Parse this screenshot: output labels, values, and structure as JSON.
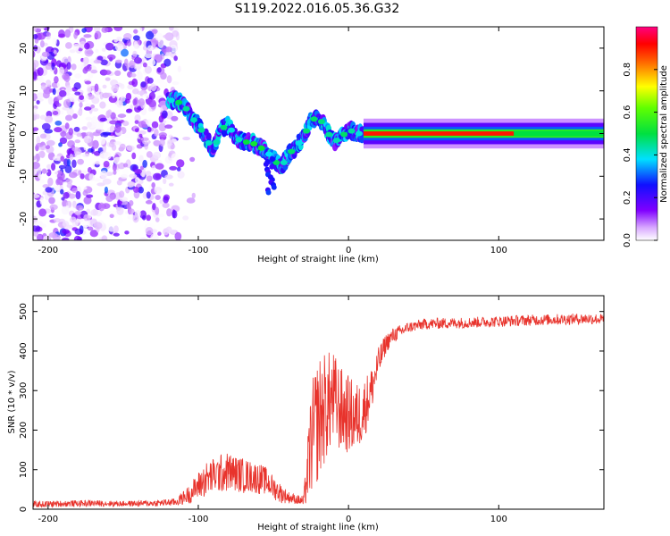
{
  "chart_data": [
    {
      "type": "heatmap",
      "title": "S119.2022.016.05.36.G32",
      "xlabel": "Height of straight line (km)",
      "ylabel": "Frequency (Hz)",
      "xlim": [
        -210,
        170
      ],
      "ylim": [
        -25,
        25
      ],
      "x_ticks": [
        -200,
        -100,
        0,
        100
      ],
      "y_ticks": [
        20,
        10,
        0,
        -10,
        -20
      ],
      "colorbar": {
        "label": "Normalized spectral amplitude",
        "range": [
          0,
          1
        ],
        "ticks": [
          "0.0",
          "0.2",
          "0.4",
          "0.6",
          "0.8"
        ],
        "tick_values": [
          0.0,
          0.2,
          0.4,
          0.6,
          0.8
        ],
        "colormap": "rainbow (white-violet-blue-cyan-green-yellow-red-magenta)"
      },
      "ridge": {
        "x": [
          -120,
          -115,
          -110,
          -105,
          -100,
          -95,
          -90,
          -85,
          -80,
          -75,
          -70,
          -65,
          -60,
          -55,
          -50,
          -45,
          -40,
          -35,
          -30,
          -25,
          -20,
          -15,
          -10,
          -5,
          0,
          5,
          10
        ],
        "y": [
          8,
          7.5,
          7,
          4,
          2,
          -1,
          -4,
          1,
          2,
          -1,
          -2,
          -2,
          -3,
          -4,
          -6,
          -8,
          -5,
          -3,
          -1,
          3,
          4,
          1,
          -2,
          -1,
          1,
          0,
          0
        ]
      },
      "carrier": {
        "x_start": 10,
        "x_end": 170,
        "frequency": 0,
        "amplitude": 0.9
      }
    },
    {
      "type": "line",
      "xlabel": "Height of straight line (km)",
      "ylabel": "SNR (10 * v/v)",
      "xlim": [
        -210,
        170
      ],
      "ylim": [
        0,
        540
      ],
      "x_ticks": [
        -200,
        -100,
        0,
        100
      ],
      "y_ticks": [
        0,
        100,
        200,
        300,
        400,
        500
      ],
      "color": "#e8332c",
      "x": [
        -210,
        -190,
        -170,
        -150,
        -130,
        -115,
        -105,
        -100,
        -95,
        -90,
        -85,
        -80,
        -75,
        -70,
        -65,
        -60,
        -55,
        -50,
        -45,
        -40,
        -35,
        -30,
        -28,
        -25,
        -20,
        -15,
        -10,
        -5,
        0,
        5,
        10,
        15,
        20,
        25,
        30,
        40,
        50,
        60,
        80,
        100,
        120,
        140,
        160,
        170
      ],
      "y": [
        12,
        14,
        15,
        14,
        15,
        18,
        40,
        60,
        75,
        85,
        90,
        95,
        90,
        85,
        82,
        78,
        72,
        55,
        40,
        30,
        25,
        20,
        70,
        170,
        230,
        260,
        280,
        250,
        240,
        230,
        250,
        300,
        370,
        420,
        440,
        460,
        468,
        470,
        472,
        475,
        478,
        480,
        482,
        480
      ],
      "noise": [
        8,
        8,
        8,
        7,
        8,
        10,
        25,
        35,
        45,
        45,
        50,
        50,
        45,
        45,
        40,
        40,
        35,
        30,
        25,
        15,
        12,
        15,
        60,
        140,
        160,
        140,
        120,
        110,
        100,
        90,
        80,
        60,
        40,
        25,
        20,
        14,
        14,
        14,
        14,
        14,
        14,
        14,
        14,
        14
      ]
    }
  ]
}
